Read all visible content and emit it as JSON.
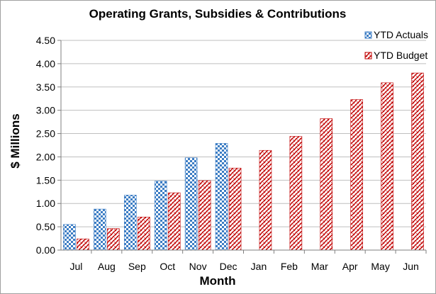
{
  "chart_data": {
    "type": "bar",
    "title": "Operating Grants, Subsidies & Contributions",
    "xlabel": "Month",
    "ylabel": "$ Millions",
    "categories": [
      "Jul",
      "Aug",
      "Sep",
      "Oct",
      "Nov",
      "Dec",
      "Jan",
      "Feb",
      "Mar",
      "Apr",
      "May",
      "Jun"
    ],
    "series": [
      {
        "name": "YTD Actuals",
        "color": "#3c7dc4",
        "values": [
          0.55,
          0.88,
          1.18,
          1.48,
          1.98,
          2.29,
          null,
          null,
          null,
          null,
          null,
          null
        ]
      },
      {
        "name": "YTD Budget",
        "color": "#c00000",
        "values": [
          0.24,
          0.46,
          0.71,
          1.23,
          1.49,
          1.76,
          2.14,
          2.44,
          2.82,
          3.23,
          3.59,
          3.8
        ]
      }
    ],
    "ylim": [
      0,
      4.5
    ],
    "yticks": [
      "0.00",
      "0.50",
      "1.00",
      "1.50",
      "2.00",
      "2.50",
      "3.00",
      "3.50",
      "4.00",
      "4.50"
    ],
    "grid": true,
    "legend_position": "top-right"
  }
}
